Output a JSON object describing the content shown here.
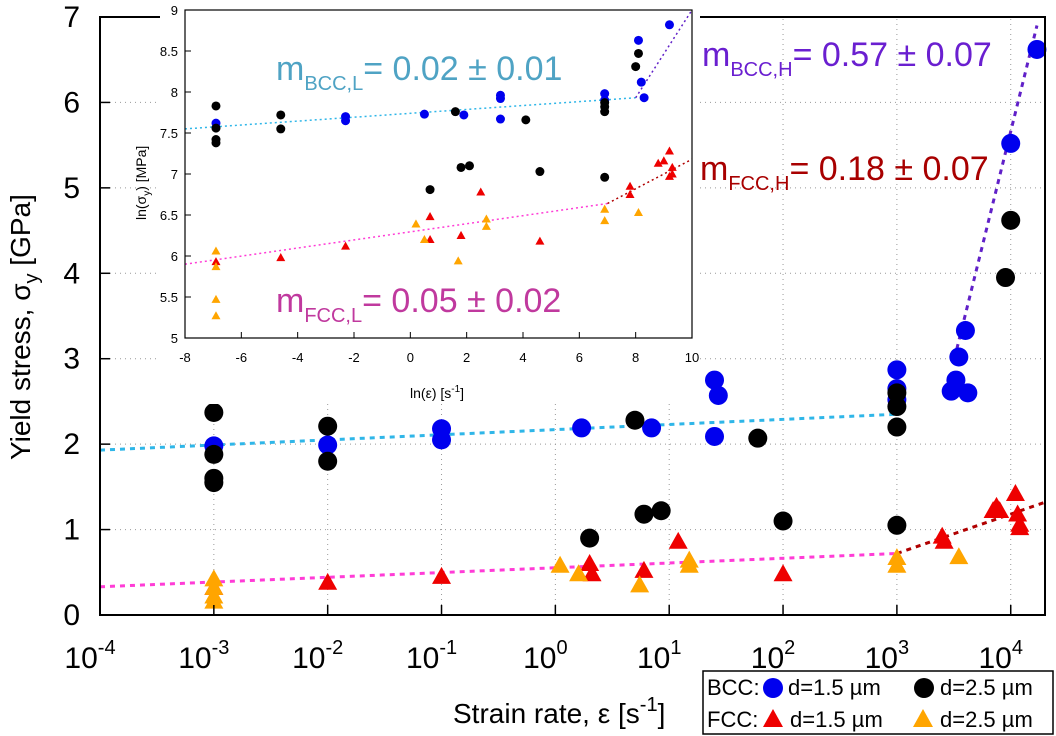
{
  "chart_data": [
    {
      "id": "main",
      "type": "scatter",
      "xscale": "log",
      "x_ticks": [
        {
          "value": 0.0001,
          "base": "10",
          "exp": "-4"
        },
        {
          "value": 0.001,
          "base": "10",
          "exp": "-3"
        },
        {
          "value": 0.01,
          "base": "10",
          "exp": "-2"
        },
        {
          "value": 0.1,
          "base": "10",
          "exp": "-1"
        },
        {
          "value": 1,
          "base": "10",
          "exp": "0"
        },
        {
          "value": 10,
          "base": "10",
          "exp": "1"
        },
        {
          "value": 100,
          "base": "10",
          "exp": "2"
        },
        {
          "value": 1000,
          "base": "10",
          "exp": "3"
        },
        {
          "value": 10000,
          "base": "10",
          "exp": "4"
        }
      ],
      "y_ticks": [
        "0",
        "1",
        "2",
        "3",
        "4",
        "5",
        "6",
        "7"
      ],
      "xlim": [
        0.0001,
        20000
      ],
      "ylim": [
        0,
        7
      ],
      "xlabel": {
        "text": "Strain rate, ",
        "symbol": "ε",
        "unit_open": " [s",
        "unit_exp": "-1",
        "unit_close": "]"
      },
      "ylabel": {
        "text": "Yield stress, σ",
        "sub": "y",
        "unit": " [GPa]"
      },
      "grid": "dotted",
      "series": [
        {
          "name": "BCC d=1.5 µm",
          "marker": "circle",
          "color": "#0000ee",
          "points": [
            [
              0.001,
              1.98
            ],
            [
              0.01,
              1.99
            ],
            [
              0.1,
              2.18
            ],
            [
              0.1,
              2.05
            ],
            [
              1.7,
              2.19
            ],
            [
              7,
              2.19
            ],
            [
              25,
              2.09
            ],
            [
              25,
              2.75
            ],
            [
              27,
              2.57
            ],
            [
              1000,
              2.87
            ],
            [
              1000,
              2.65
            ],
            [
              1000,
              2.52
            ],
            [
              3000,
              2.62
            ],
            [
              3300,
              2.75
            ],
            [
              3500,
              3.02
            ],
            [
              4000,
              3.33
            ],
            [
              4200,
              2.6
            ],
            [
              10000,
              5.52
            ],
            [
              17000,
              6.62
            ]
          ]
        },
        {
          "name": "BCC d=2.5 µm",
          "marker": "circle",
          "color": "#000000",
          "points": [
            [
              0.001,
              2.37
            ],
            [
              0.001,
              1.88
            ],
            [
              0.001,
              1.6
            ],
            [
              0.001,
              1.55
            ],
            [
              0.01,
              2.21
            ],
            [
              0.01,
              1.8
            ],
            [
              2,
              0.9
            ],
            [
              5,
              2.28
            ],
            [
              6,
              1.18
            ],
            [
              8.5,
              1.22
            ],
            [
              60,
              2.07
            ],
            [
              100,
              1.1
            ],
            [
              1000,
              1.05
            ],
            [
              1000,
              2.6
            ],
            [
              1000,
              2.44
            ],
            [
              1000,
              2.2
            ],
            [
              9000,
              3.95
            ],
            [
              10000,
              4.62
            ]
          ]
        },
        {
          "name": "FCC d=1.5 µm",
          "marker": "triangle",
          "color": "#ee0000",
          "points": [
            [
              0.001,
              0.32
            ],
            [
              0.01,
              0.38
            ],
            [
              0.1,
              0.45
            ],
            [
              2,
              0.6
            ],
            [
              2.1,
              0.48
            ],
            [
              6,
              0.52
            ],
            [
              12,
              0.86
            ],
            [
              100,
              0.48
            ],
            [
              2500,
              0.92
            ],
            [
              2600,
              0.86
            ],
            [
              7000,
              1.22
            ],
            [
              7500,
              1.27
            ],
            [
              8000,
              1.22
            ],
            [
              11000,
              1.42
            ],
            [
              11500,
              1.18
            ],
            [
              12000,
              1.06
            ],
            [
              12000,
              1.02
            ]
          ]
        },
        {
          "name": "FCC d=2.5 µm",
          "marker": "triangle",
          "color": "#ffa500",
          "points": [
            [
              0.001,
              0.42
            ],
            [
              0.001,
              0.32
            ],
            [
              0.001,
              0.22
            ],
            [
              0.001,
              0.16
            ],
            [
              1.1,
              0.58
            ],
            [
              1.6,
              0.48
            ],
            [
              5.5,
              0.35
            ],
            [
              15,
              0.64
            ],
            [
              15,
              0.58
            ],
            [
              1000,
              0.58
            ],
            [
              1000,
              0.67
            ],
            [
              3500,
              0.68
            ]
          ]
        }
      ],
      "fits": [
        {
          "name": "BCC low fit",
          "color": "#2fb6e8",
          "from": [
            0.0001,
            1.93
          ],
          "to": [
            1000,
            2.35
          ]
        },
        {
          "name": "BCC high fit",
          "color": "#6020c8",
          "from": [
            3200,
            3.0
          ],
          "to": [
            17000,
            6.9
          ]
        },
        {
          "name": "FCC low fit",
          "color": "#ff3cd6",
          "from": [
            0.0001,
            0.33
          ],
          "to": [
            1000,
            0.72
          ]
        },
        {
          "name": "FCC high fit",
          "color": "#b00000",
          "from": [
            1000,
            0.72
          ],
          "to": [
            20000,
            1.32
          ]
        }
      ]
    },
    {
      "id": "inset",
      "type": "scatter",
      "xscale": "linear",
      "xlim": [
        -8,
        10
      ],
      "ylim": [
        5,
        9
      ],
      "x_ticks": [
        "-8",
        "-6",
        "-4",
        "-2",
        "0",
        "2",
        "4",
        "6",
        "8",
        "10"
      ],
      "y_ticks": [
        "5",
        "5.5",
        "6",
        "6.5",
        "7",
        "7.5",
        "8",
        "8.5",
        "9"
      ],
      "xlabel": {
        "text": "ln(",
        "symbol": "ε",
        "unit_open": ") [s",
        "unit_exp": "-1",
        "unit_close": "]"
      },
      "ylabel": {
        "text": "ln(σ",
        "sub": "y",
        "unit": ") [MPa]"
      },
      "grid": "none",
      "series": [
        {
          "name": "BCC d=1.5 µm",
          "marker": "circle",
          "color": "#0000ee",
          "points": [
            [
              -6.9,
              7.62
            ],
            [
              -2.3,
              7.7
            ],
            [
              -2.3,
              7.65
            ],
            [
              0.5,
              7.73
            ],
            [
              1.9,
              7.72
            ],
            [
              3.2,
              7.96
            ],
            [
              3.2,
              7.92
            ],
            [
              3.2,
              7.67
            ],
            [
              6.9,
              7.98
            ],
            [
              6.9,
              7.9
            ],
            [
              8.2,
              8.12
            ],
            [
              8.3,
              7.93
            ],
            [
              8.1,
              8.63
            ],
            [
              9.2,
              8.82
            ]
          ]
        },
        {
          "name": "BCC d=2.5 µm",
          "marker": "circle",
          "color": "#000000",
          "points": [
            [
              -6.9,
              7.83
            ],
            [
              -6.9,
              7.56
            ],
            [
              -6.9,
              7.42
            ],
            [
              -6.9,
              7.38
            ],
            [
              -4.6,
              7.72
            ],
            [
              -4.6,
              7.55
            ],
            [
              0.7,
              6.81
            ],
            [
              1.6,
              7.76
            ],
            [
              1.8,
              7.08
            ],
            [
              2.1,
              7.1
            ],
            [
              4.1,
              7.66
            ],
            [
              4.6,
              7.03
            ],
            [
              6.9,
              7.87
            ],
            [
              6.9,
              7.82
            ],
            [
              6.9,
              7.76
            ],
            [
              6.9,
              6.96
            ],
            [
              8.0,
              8.31
            ],
            [
              8.1,
              8.47
            ]
          ]
        },
        {
          "name": "FCC d=1.5 µm",
          "marker": "triangle",
          "color": "#ee0000",
          "points": [
            [
              -6.9,
              5.93
            ],
            [
              -4.6,
              5.98
            ],
            [
              -2.3,
              6.12
            ],
            [
              0.7,
              6.48
            ],
            [
              0.7,
              6.2
            ],
            [
              1.8,
              6.25
            ],
            [
              2.5,
              6.78
            ],
            [
              4.6,
              6.18
            ],
            [
              7.8,
              6.85
            ],
            [
              7.8,
              6.75
            ],
            [
              8.8,
              7.13
            ],
            [
              9.0,
              7.16
            ],
            [
              9.2,
              7.28
            ],
            [
              9.3,
              7.08
            ],
            [
              9.3,
              7.0
            ],
            [
              9.2,
              6.97
            ]
          ]
        },
        {
          "name": "FCC d=2.5 µm",
          "marker": "triangle",
          "color": "#ffa500",
          "points": [
            [
              -6.9,
              6.06
            ],
            [
              -6.9,
              5.87
            ],
            [
              -6.9,
              5.47
            ],
            [
              -6.9,
              5.27
            ],
            [
              0.2,
              6.39
            ],
            [
              0.5,
              6.2
            ],
            [
              1.7,
              5.94
            ],
            [
              2.7,
              6.45
            ],
            [
              2.7,
              6.36
            ],
            [
              6.9,
              6.43
            ],
            [
              6.9,
              6.57
            ],
            [
              8.1,
              6.53
            ]
          ]
        }
      ],
      "fits": [
        {
          "name": "BCC low fit",
          "color": "#2fb6e8",
          "from": [
            -8,
            7.55
          ],
          "to": [
            8,
            7.93
          ]
        },
        {
          "name": "BCC high fit",
          "color": "#6020c8",
          "from": [
            8,
            7.93
          ],
          "to": [
            10,
            9.0
          ]
        },
        {
          "name": "FCC low fit",
          "color": "#ff3cd6",
          "from": [
            -8,
            5.9
          ],
          "to": [
            7,
            6.64
          ]
        },
        {
          "name": "FCC high fit",
          "color": "#b00000",
          "from": [
            7,
            6.64
          ],
          "to": [
            10,
            7.18
          ]
        }
      ]
    }
  ],
  "annotations": {
    "bcc_low": {
      "m": "m",
      "sub": "BCC,L",
      "value": "= 0.02 ± 0.01",
      "color": "#4fa3c4"
    },
    "bcc_high": {
      "m": "m",
      "sub": "BCC,H",
      "value": "= 0.57 ± 0.07",
      "color": "#6a1fd0"
    },
    "fcc_high": {
      "m": "m",
      "sub": "FCC,H",
      "value": "= 0.18 ± 0.07",
      "color": "#a80000"
    },
    "fcc_low": {
      "m": "m",
      "sub": "FCC,L",
      "value": "= 0.05 ± 0.02",
      "color": "#c0399e"
    }
  },
  "legend": {
    "bcc_label": "BCC:",
    "fcc_label": "FCC:",
    "entry_small": "d=1.5 µm",
    "entry_large": "d=2.5 µm"
  }
}
